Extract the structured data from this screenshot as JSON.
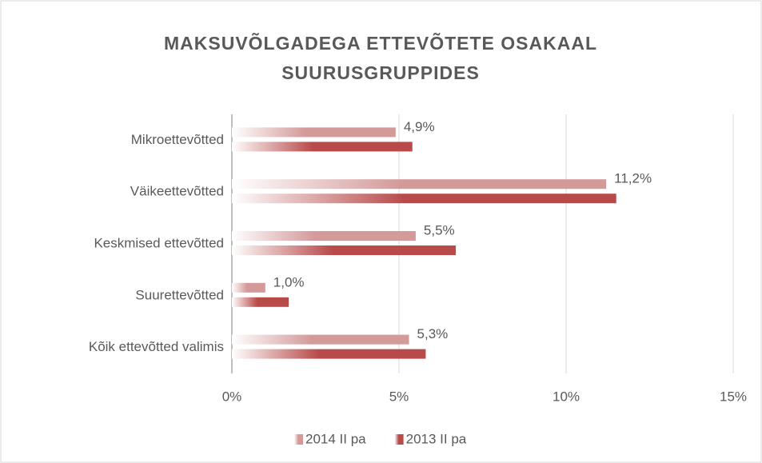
{
  "chart_data": {
    "type": "bar",
    "orientation": "horizontal",
    "title": [
      "MAKSUVÕLGADEGA ETTEVÕTETE OSAKAAL",
      "SUURUSGRUPPIDES"
    ],
    "categories": [
      "Mikroettevõtted",
      "Väikeettevõtted",
      "Keskmised ettevõtted",
      "Suurettevõtted",
      "Kõik ettevõtted valimis"
    ],
    "series": [
      {
        "name": "2014 II pa",
        "color": "#d49a9a",
        "values": [
          4.9,
          11.2,
          5.5,
          1.0,
          5.3
        ],
        "value_labels": [
          "4,9%",
          "11,2%",
          "5,5%",
          "1,0%",
          "5,3%"
        ]
      },
      {
        "name": "2013 II pa",
        "color": "#b84a4a",
        "values": [
          5.4,
          11.5,
          6.7,
          1.7,
          5.8
        ]
      }
    ],
    "xlim": [
      0,
      15
    ],
    "xticks": [
      {
        "value": 0,
        "label": "0%"
      },
      {
        "value": 5,
        "label": "5%"
      },
      {
        "value": 10,
        "label": "10%"
      },
      {
        "value": 15,
        "label": "15%"
      }
    ],
    "grid": true,
    "legend": "bottom"
  }
}
